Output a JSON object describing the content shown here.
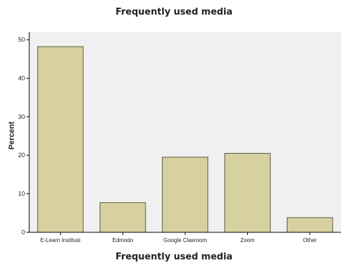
{
  "chart_data": {
    "type": "bar",
    "title": "Frequently used media",
    "xlabel": "Frequently used media",
    "ylabel": "Percent",
    "categories": [
      "E-Learn Institusi",
      "Edmodo",
      "Google Clasroom",
      "Zoom",
      "Other"
    ],
    "values": [
      48.2,
      7.7,
      19.5,
      20.5,
      3.8
    ],
    "ylim": [
      0,
      52
    ],
    "yticks": [
      0,
      10,
      20,
      30,
      40,
      50
    ],
    "grid": false,
    "legend": "none",
    "colors": {
      "bar_fill": "#d7d0a0",
      "bar_stroke": "#5a5a3c",
      "plot_bg": "#f0f0f0",
      "axis": "#000000"
    }
  }
}
